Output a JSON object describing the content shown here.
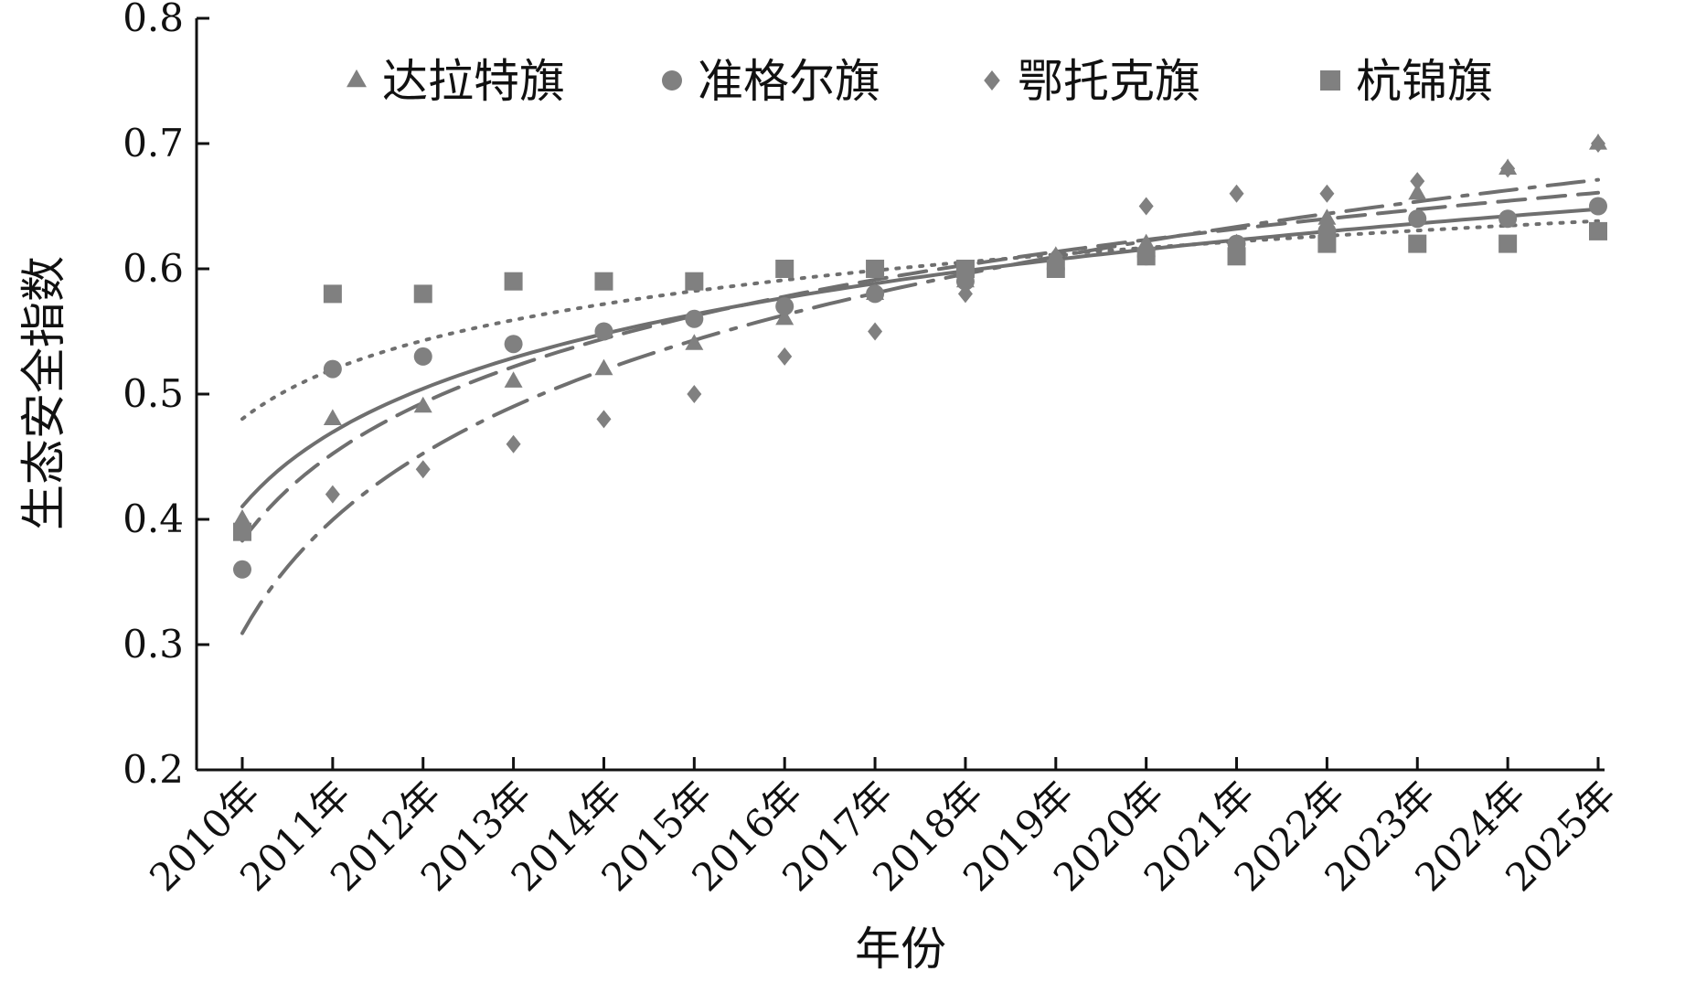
{
  "chart_data": {
    "type": "scatter",
    "title": "",
    "xlabel": "年份",
    "ylabel": "生态安全指数",
    "ylim": [
      0.2,
      0.8
    ],
    "yticks": [
      "0.2",
      "0.3",
      "0.4",
      "0.5",
      "0.6",
      "0.7",
      "0.8"
    ],
    "categories": [
      "2010年",
      "2011年",
      "2012年",
      "2013年",
      "2014年",
      "2015年",
      "2016年",
      "2017年",
      "2018年",
      "2019年",
      "2020年",
      "2021年",
      "2022年",
      "2023年",
      "2024年",
      "2025年"
    ],
    "legend_position": "top",
    "grid": false,
    "series": [
      {
        "name": "达拉特旗",
        "marker": "triangle",
        "color": "#808080",
        "trend_style": "dash",
        "values": [
          0.4,
          0.48,
          0.49,
          0.51,
          0.52,
          0.54,
          0.56,
          0.58,
          0.59,
          0.61,
          0.62,
          0.62,
          0.64,
          0.66,
          0.68,
          0.7
        ]
      },
      {
        "name": "准格尔旗",
        "marker": "circle",
        "color": "#808080",
        "trend_style": "solid",
        "values": [
          0.36,
          0.52,
          0.53,
          0.54,
          0.55,
          0.56,
          0.57,
          0.58,
          0.59,
          0.6,
          0.61,
          0.62,
          0.63,
          0.64,
          0.64,
          0.65
        ]
      },
      {
        "name": "鄂托克旗",
        "marker": "diamond",
        "color": "#808080",
        "trend_style": "dashdot",
        "values": [
          0.36,
          0.42,
          0.44,
          0.46,
          0.48,
          0.5,
          0.53,
          0.55,
          0.58,
          0.61,
          0.65,
          0.66,
          0.66,
          0.67,
          0.68,
          0.7
        ]
      },
      {
        "name": "杭锦旗",
        "marker": "square",
        "color": "#808080",
        "trend_style": "dot",
        "values": [
          0.39,
          0.58,
          0.58,
          0.59,
          0.59,
          0.59,
          0.6,
          0.6,
          0.6,
          0.6,
          0.61,
          0.61,
          0.62,
          0.62,
          0.62,
          0.63
        ]
      }
    ]
  }
}
